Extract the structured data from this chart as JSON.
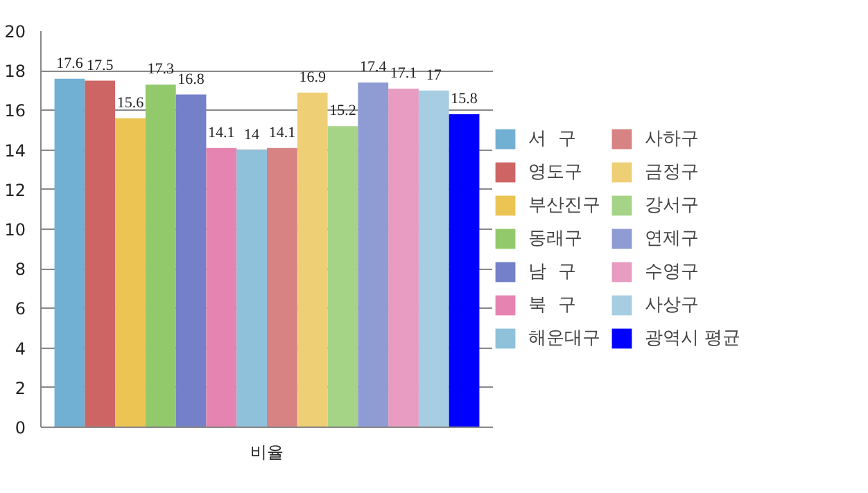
{
  "chart_data": {
    "type": "bar",
    "categories": [
      "비율"
    ],
    "series": [
      {
        "name": "서  구",
        "color": "#72b0d3",
        "values": [
          17.6
        ]
      },
      {
        "name": "영도구",
        "color": "#cd6565",
        "values": [
          17.5
        ]
      },
      {
        "name": "부산진구",
        "color": "#ebc453",
        "values": [
          15.6
        ]
      },
      {
        "name": "동래구",
        "color": "#92c96a",
        "values": [
          17.3
        ]
      },
      {
        "name": "남  구",
        "color": "#7480c7",
        "values": [
          16.8
        ]
      },
      {
        "name": "북  구",
        "color": "#e584b1",
        "values": [
          14.1
        ]
      },
      {
        "name": "해운대구",
        "color": "#8fc1da",
        "values": [
          14
        ]
      },
      {
        "name": "사하구",
        "color": "#d88383",
        "values": [
          14.1
        ]
      },
      {
        "name": "금정구",
        "color": "#eecf76",
        "values": [
          16.9
        ]
      },
      {
        "name": "강서구",
        "color": "#a6d487",
        "values": [
          15.2
        ]
      },
      {
        "name": "연제구",
        "color": "#8f9bd3",
        "values": [
          17.4
        ]
      },
      {
        "name": "수영구",
        "color": "#e89cc1",
        "values": [
          17.1
        ]
      },
      {
        "name": "사상구",
        "color": "#a7cde2",
        "values": [
          17
        ]
      },
      {
        "name": "광역시 평균",
        "color": "#0000ff",
        "values": [
          15.8
        ]
      }
    ],
    "ylim": [
      0,
      20
    ],
    "yticks": [
      0,
      2,
      4,
      6,
      8,
      10,
      12,
      14,
      16,
      18,
      20
    ],
    "grid": "y",
    "legend": "right",
    "data_labels": true
  }
}
